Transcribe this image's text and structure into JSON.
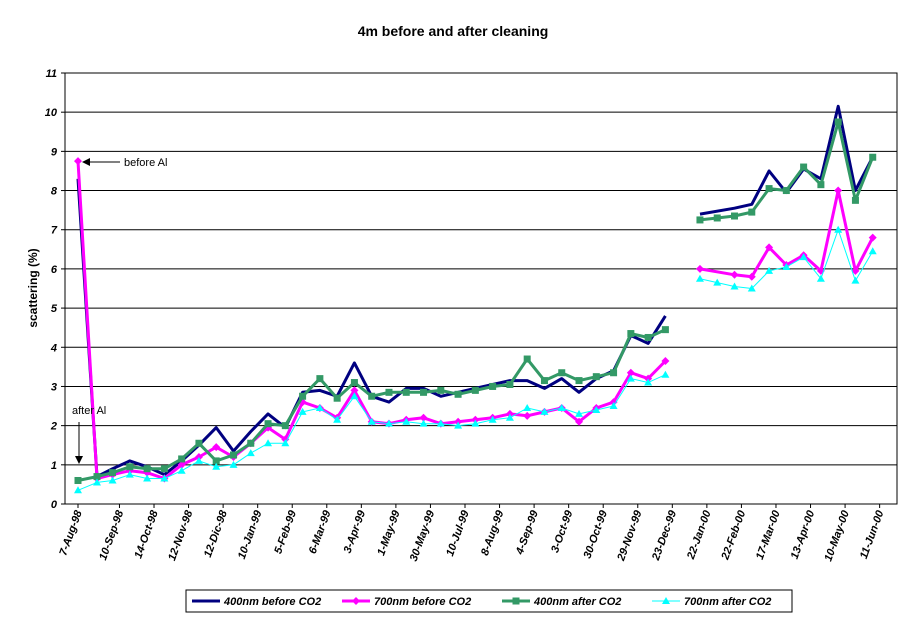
{
  "chart_data": {
    "type": "line",
    "title": "4m before and after cleaning",
    "xlabel": "",
    "ylabel": "scattering (%)",
    "ylim": [
      0,
      11
    ],
    "yticks": [
      0,
      1,
      2,
      3,
      4,
      5,
      6,
      7,
      8,
      9,
      10,
      11
    ],
    "grid": "horizontal",
    "legend_position": "bottom",
    "x_tick_labels": [
      "7-Aug-98",
      "10-Sep-98",
      "14-Oct-98",
      "12-Nov-98",
      "12-Dic-98",
      "10-Jan-99",
      "5-Feb-99",
      "6-Mar-99",
      "3-Apr-99",
      "1-May-99",
      "30-May-99",
      "10-Jul-99",
      "8-Aug-99",
      "4-Sep-99",
      "3-Oct-99",
      "30-Oct-99",
      "29-Nov-99",
      "23-Dec-99",
      "22-Jan-00",
      "22-Feb-00",
      "17-Mar-00",
      "13-Apr-00",
      "10-May-00",
      "11-Jun-00"
    ],
    "x_tick_positions": [
      0,
      1.2,
      2.2,
      3.2,
      4.2,
      5.2,
      6.2,
      7.2,
      8.2,
      9.2,
      10.2,
      11.2,
      12.2,
      13.2,
      14.2,
      15.2,
      16.2,
      17.2,
      18.2,
      19.2,
      20.2,
      21.2,
      22.2,
      23.2
    ],
    "annotations": [
      {
        "text": "before Al",
        "x": 0,
        "y": 8.75
      },
      {
        "text": "after Al",
        "x": 0,
        "y": 0.6
      }
    ],
    "series": [
      {
        "name": "400nm before CO2",
        "color": "#000080",
        "marker": "none",
        "segments": [
          {
            "x": [
              0,
              0.55,
              1.0,
              1.5,
              2.0,
              2.5,
              3.0,
              3.5,
              4.0,
              4.5,
              5.0,
              5.5,
              6.0,
              6.5,
              7.0,
              7.5,
              8.0,
              8.5,
              9.0,
              9.5,
              10.0,
              10.5,
              11.0,
              11.5,
              12.0,
              12.5,
              13.0,
              13.5,
              14.0,
              14.5,
              15.0,
              15.5,
              16.0,
              16.5,
              17.0
            ],
            "y": [
              8.3,
              0.7,
              0.9,
              1.1,
              0.95,
              0.75,
              1.1,
              1.5,
              1.95,
              1.35,
              1.85,
              2.3,
              1.95,
              2.85,
              2.9,
              2.75,
              3.6,
              2.75,
              2.6,
              2.95,
              2.95,
              2.75,
              2.85,
              2.95,
              3.05,
              3.15,
              3.15,
              2.95,
              3.2,
              2.85,
              3.2,
              3.4,
              4.3,
              4.1,
              4.8
            ]
          },
          {
            "x": [
              18.0,
              19.0,
              19.5,
              20.0,
              20.5,
              21.0,
              21.5,
              22.0,
              22.5,
              23.0
            ],
            "y": [
              7.4,
              7.55,
              7.65,
              8.5,
              7.95,
              8.55,
              8.3,
              10.15,
              8.0,
              8.85
            ]
          }
        ]
      },
      {
        "name": "700nm before CO2",
        "color": "#ff00ff",
        "marker": "diamond",
        "segments": [
          {
            "x": [
              0,
              0.55,
              1.0,
              1.5,
              2.0,
              2.5,
              3.0,
              3.5,
              4.0,
              4.5,
              5.0,
              5.5,
              6.0,
              6.5,
              7.0,
              7.5,
              8.0,
              8.5,
              9.0,
              9.5,
              10.0,
              10.5,
              11.0,
              11.5,
              12.0,
              12.5,
              13.0,
              13.5,
              14.0,
              14.5,
              15.0,
              15.5,
              16.0,
              16.5,
              17.0
            ],
            "y": [
              8.75,
              0.65,
              0.75,
              0.85,
              0.8,
              0.65,
              1.0,
              1.2,
              1.45,
              1.2,
              1.55,
              1.95,
              1.65,
              2.6,
              2.45,
              2.2,
              2.9,
              2.1,
              2.05,
              2.15,
              2.2,
              2.05,
              2.1,
              2.15,
              2.2,
              2.3,
              2.25,
              2.35,
              2.45,
              2.1,
              2.45,
              2.6,
              3.35,
              3.2,
              3.65
            ]
          },
          {
            "x": [
              18.0,
              19.0,
              19.5,
              20.0,
              20.5,
              21.0,
              21.5,
              22.0,
              22.5,
              23.0
            ],
            "y": [
              6.0,
              5.85,
              5.8,
              6.55,
              6.1,
              6.35,
              5.95,
              8.0,
              5.95,
              6.8
            ]
          }
        ]
      },
      {
        "name": "400nm after CO2",
        "color": "#339966",
        "marker": "square",
        "segments": [
          {
            "x": [
              0,
              0.55,
              1.0,
              1.5,
              2.0,
              2.5,
              3.0,
              3.5,
              4.0,
              4.5,
              5.0,
              5.5,
              6.0,
              6.5,
              7.0,
              7.5,
              8.0,
              8.5,
              9.0,
              9.5,
              10.0,
              10.5,
              11.0,
              11.5,
              12.0,
              12.5,
              13.0,
              13.5,
              14.0,
              14.5,
              15.0,
              15.5,
              16.0,
              16.5,
              17.0
            ],
            "y": [
              0.6,
              0.7,
              0.8,
              0.95,
              0.9,
              0.9,
              1.15,
              1.55,
              1.1,
              1.25,
              1.55,
              2.05,
              2.0,
              2.75,
              3.2,
              2.7,
              3.1,
              2.75,
              2.85,
              2.85,
              2.85,
              2.9,
              2.8,
              2.9,
              3.0,
              3.05,
              3.7,
              3.15,
              3.35,
              3.15,
              3.25,
              3.35,
              4.35,
              4.25,
              4.45
            ]
          },
          {
            "x": [
              18.0,
              18.5,
              19.0,
              19.5,
              20.0,
              20.5,
              21.0,
              21.5,
              22.0,
              22.5,
              23.0
            ],
            "y": [
              7.25,
              7.3,
              7.35,
              7.45,
              8.05,
              8.0,
              8.6,
              8.15,
              9.75,
              7.75,
              8.85
            ]
          }
        ]
      },
      {
        "name": "700nm after CO2",
        "color": "#00ffff",
        "marker": "triangle",
        "segments": [
          {
            "x": [
              0,
              0.55,
              1.0,
              1.5,
              2.0,
              2.5,
              3.0,
              3.5,
              4.0,
              4.5,
              5.0,
              5.5,
              6.0,
              6.5,
              7.0,
              7.5,
              8.0,
              8.5,
              9.0,
              9.5,
              10.0,
              10.5,
              11.0,
              11.5,
              12.0,
              12.5,
              13.0,
              13.5,
              14.0,
              14.5,
              15.0,
              15.5,
              16.0,
              16.5,
              17.0
            ],
            "y": [
              0.35,
              0.55,
              0.6,
              0.75,
              0.65,
              0.65,
              0.85,
              1.1,
              0.95,
              1.0,
              1.3,
              1.55,
              1.55,
              2.35,
              2.45,
              2.15,
              2.75,
              2.1,
              2.05,
              2.1,
              2.05,
              2.05,
              2.0,
              2.05,
              2.15,
              2.2,
              2.45,
              2.35,
              2.45,
              2.3,
              2.4,
              2.5,
              3.2,
              3.1,
              3.3
            ]
          },
          {
            "x": [
              18.0,
              18.5,
              19.0,
              19.5,
              20.0,
              20.5,
              21.0,
              21.5,
              22.0,
              22.5,
              23.0
            ],
            "y": [
              5.75,
              5.65,
              5.55,
              5.5,
              5.95,
              6.05,
              6.3,
              5.75,
              7.0,
              5.7,
              6.45
            ]
          }
        ]
      }
    ]
  }
}
